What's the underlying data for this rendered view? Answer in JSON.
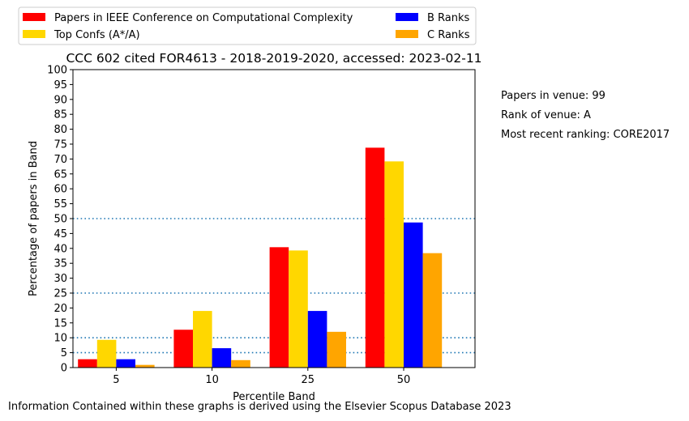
{
  "chart_data": {
    "type": "bar",
    "title": "CCC 602 cited FOR4613 - 2018-2019-2020, accessed: 2023-02-11",
    "xlabel": "Percentile Band",
    "ylabel": "Percentage of papers in Band",
    "categories": [
      "5",
      "10",
      "25",
      "50"
    ],
    "ylim": [
      0,
      100
    ],
    "yticks": [
      0,
      5,
      10,
      15,
      20,
      25,
      30,
      35,
      40,
      45,
      50,
      55,
      60,
      65,
      70,
      75,
      80,
      85,
      90,
      95,
      100
    ],
    "reference_lines": [
      5,
      10,
      25,
      50
    ],
    "grid": false,
    "legend_position": "top, above plot, two columns",
    "series": [
      {
        "name": "Papers in IEEE Conference on Computational Complexity",
        "color": "#ff0000",
        "values": [
          2.8,
          12.7,
          40.4,
          73.8
        ]
      },
      {
        "name": "Top Confs (A*/A)",
        "color": "#ffd700",
        "values": [
          9.3,
          19.0,
          39.3,
          69.2
        ]
      },
      {
        "name": "B Ranks",
        "color": "#0000ff",
        "values": [
          2.8,
          6.5,
          19.0,
          48.7
        ]
      },
      {
        "name": "C Ranks",
        "color": "#ffa500",
        "values": [
          0.9,
          2.5,
          12.0,
          38.4
        ]
      }
    ]
  },
  "info": {
    "papers_in_venue": "Papers in venue: 99",
    "rank_of_venue": "Rank of venue: A",
    "recent_ranking": "Most recent ranking: CORE2017"
  },
  "footer": "Information Contained within these graphs is derived using the Elsevier Scopus Database 2023"
}
